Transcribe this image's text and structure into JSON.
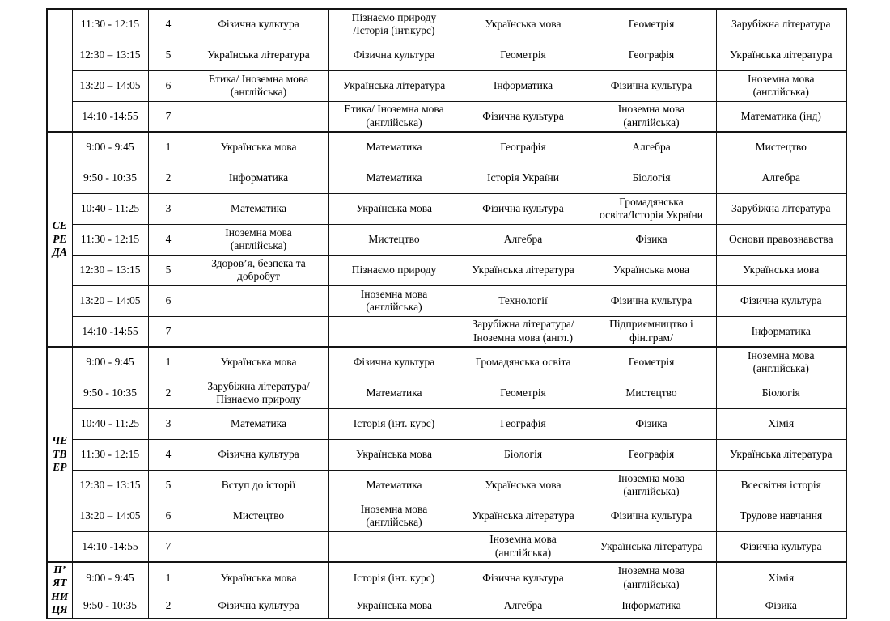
{
  "colors": {
    "background": "#ffffff",
    "border": "#141414",
    "text": "#000000"
  },
  "table": {
    "day_blocks": [
      {
        "day": "",
        "day_lines": [],
        "rows": [
          {
            "time": "11:30 - 12:15",
            "lesson": "4",
            "subjects": [
              "Фізична культура",
              {
                "t": "Пізнаємо природу\n/Історія (інт.курс)",
                "align": "left"
              },
              "Українська мова",
              "Геометрія",
              "Зарубіжна література"
            ]
          },
          {
            "time": "12:30 – 13:15",
            "lesson": "5",
            "subjects": [
              "Українська література",
              "Фізична культура",
              "Геометрія",
              "Географія",
              "Українська література"
            ]
          },
          {
            "time": "13:20 – 14:05",
            "lesson": "6",
            "subjects": [
              "Етика/ Іноземна мова\n(англійська)",
              "Українська література",
              "Інформатика",
              "Фізична культура",
              "Іноземна мова\n(англійська)"
            ]
          },
          {
            "time": "14:10 -14:55",
            "lesson": "7",
            "subjects": [
              "",
              "Етика/ Іноземна мова\n(англійська)",
              "Фізична культура",
              "Іноземна мова\n(англійська)",
              "Математика (інд)"
            ]
          }
        ]
      },
      {
        "day": "СЕРЕДА",
        "day_lines": [
          "СЕ",
          "РЕ",
          "ДА"
        ],
        "rows": [
          {
            "time": "9:00 - 9:45",
            "lesson": "1",
            "subjects": [
              {
                "t": "Українська мова",
                "valign": "top"
              },
              "Математика",
              "Географія",
              "Алгебра",
              "Мистецтво"
            ]
          },
          {
            "time": "9:50 - 10:35",
            "lesson": "2",
            "subjects": [
              "Інформатика",
              {
                "t": "Математика",
                "valign": "top"
              },
              "Історія України",
              "Біологія",
              "Алгебра"
            ]
          },
          {
            "time": "10:40 - 11:25",
            "lesson": "3",
            "subjects": [
              "Математика",
              "Українська мова",
              "Фізична культура",
              {
                "t": "Громадянська\nосвіта/Історія України",
                "align": "left"
              },
              "Зарубіжна література"
            ]
          },
          {
            "time": "11:30 - 12:15",
            "lesson": "4",
            "subjects": [
              "Іноземна мова\n(англійська)",
              "Мистецтво",
              "Алгебра",
              "Фізика",
              "Основи правознавства"
            ]
          },
          {
            "time": "12:30 – 13:15",
            "lesson": "5",
            "subjects": [
              "Здоров’я, безпека та\nдобробут",
              "Пізнаємо природу",
              "Українська література",
              "Українська мова",
              "Українська мова"
            ]
          },
          {
            "time": "13:20 – 14:05",
            "lesson": "6",
            "subjects": [
              "",
              "Іноземна мова\n(англійська)",
              "Технології",
              "Фізична культура",
              "Фізична культура"
            ]
          },
          {
            "time": "14:10 -14:55",
            "lesson": "7",
            "subjects": [
              "",
              "",
              "Зарубіжна література/\nІноземна мова (англ.)",
              "Підприємництво і\nфін.грам/",
              "Інформатика"
            ]
          }
        ]
      },
      {
        "day": "ЧЕТВЕР",
        "day_lines": [
          "ЧЕ",
          "ТВ",
          "ЕР"
        ],
        "rows": [
          {
            "time": "9:00 - 9:45",
            "lesson": "1",
            "subjects": [
              "Українська мова",
              {
                "t": "Фізична культура",
                "valign": "top"
              },
              "Громадянська освіта",
              "Геометрія",
              "Іноземна мова\n(англійська)"
            ]
          },
          {
            "time": "9:50 - 10:35",
            "lesson": "2",
            "subjects": [
              "Зарубіжна література/\nПізнаємо природу",
              "Математика",
              "Геометрія",
              "Мистецтво",
              "Біологія"
            ]
          },
          {
            "time": "10:40 - 11:25",
            "lesson": "3",
            "subjects": [
              {
                "t": "Математика",
                "valign": "bottom"
              },
              "Історія (інт. курс)",
              "Географія",
              "Фізика",
              "Хімія"
            ]
          },
          {
            "time": "11:30 - 12:15",
            "lesson": "4",
            "subjects": [
              "Фізична культура",
              "Українська мова",
              {
                "t": "Біологія",
                "valign": "top"
              },
              {
                "t": "Географія",
                "valign": "bottom"
              },
              "Українська література"
            ]
          },
          {
            "time": "12:30 – 13:15",
            "lesson": "5",
            "subjects": [
              {
                "t": "Вступ до історії",
                "valign": "top"
              },
              "Математика",
              "Українська мова",
              "Іноземна мова\n(англійська)",
              "Всесвітня історія"
            ]
          },
          {
            "time": "13:20 – 14:05",
            "lesson": "6",
            "subjects": [
              {
                "t": "Мистецтво",
                "valign": "top"
              },
              "Іноземна мова\n(англійська)",
              "Українська література",
              "Фізична культура",
              "Трудове навчання"
            ]
          },
          {
            "time": "14:10 -14:55",
            "lesson": "7",
            "subjects": [
              "",
              "",
              "Іноземна мова\n(англійська)",
              "Українська література",
              "Фізична культура"
            ]
          }
        ]
      },
      {
        "day": "П’ЯТНИЦЯ",
        "day_lines": [
          "П’",
          "ЯТ",
          "НИ",
          "ЦЯ"
        ],
        "rows": [
          {
            "time": "9:00 - 9:45",
            "lesson": "1",
            "subjects": [
              {
                "t": "Українська мова",
                "valign": "top"
              },
              "Історія (інт. курс)",
              "Фізична культура",
              "Іноземна мова\n(англійська)",
              "Хімія"
            ]
          },
          {
            "time": "9:50 - 10:35",
            "lesson": "2",
            "subjects": [
              "Фізична культура",
              "Українська мова",
              "Алгебра",
              "Інформатика",
              "Фізика"
            ]
          }
        ]
      }
    ]
  }
}
